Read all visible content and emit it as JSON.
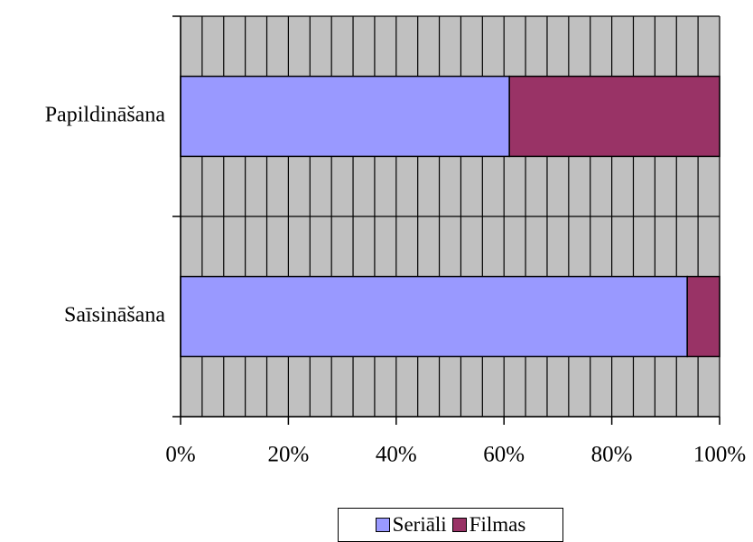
{
  "chart_data": {
    "type": "bar",
    "orientation": "horizontal",
    "stacked": "percent",
    "categories": [
      "Papildināšana",
      "Saīsināšana"
    ],
    "series": [
      {
        "name": "Seriāli",
        "values": [
          61,
          94
        ],
        "color": "#9999ff"
      },
      {
        "name": "Filmas",
        "values": [
          39,
          6
        ],
        "color": "#993366"
      }
    ],
    "x_ticks": [
      "0%",
      "20%",
      "40%",
      "60%",
      "80%",
      "100%"
    ],
    "xlim": [
      0,
      100
    ],
    "legend_position": "bottom",
    "plot_background": "#c0c0c0",
    "grid": true
  }
}
